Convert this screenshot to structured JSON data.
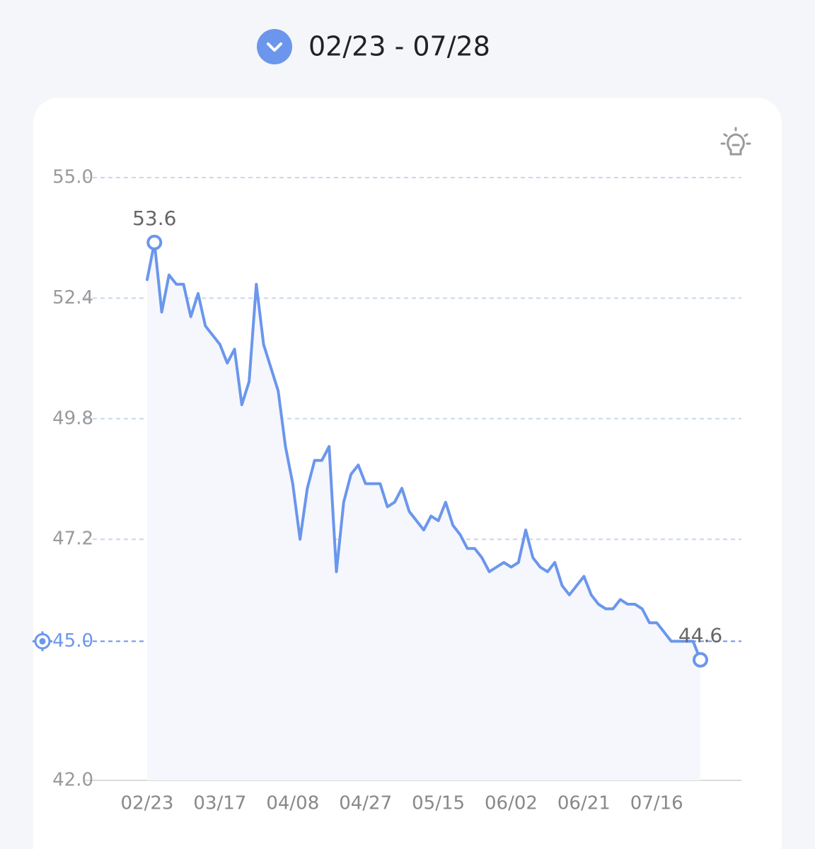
{
  "header": {
    "date_range": "02/23 - 07/28"
  },
  "chart_data": {
    "type": "line",
    "categories": [
      "02/23",
      null,
      null,
      null,
      null,
      null,
      null,
      null,
      null,
      null,
      "03/17",
      null,
      null,
      null,
      null,
      null,
      null,
      null,
      null,
      null,
      "04/08",
      null,
      null,
      null,
      null,
      null,
      null,
      null,
      null,
      null,
      "04/27",
      null,
      null,
      null,
      null,
      null,
      null,
      null,
      null,
      null,
      "05/15",
      null,
      null,
      null,
      null,
      null,
      null,
      null,
      null,
      null,
      "06/02",
      null,
      null,
      null,
      null,
      null,
      null,
      null,
      null,
      null,
      "06/21",
      null,
      null,
      null,
      null,
      null,
      null,
      null,
      null,
      null,
      "07/16",
      null,
      null,
      null,
      null,
      null,
      null
    ],
    "series": [
      {
        "color": "#6b96ec",
        "values": [
          52.8,
          53.6,
          52.1,
          52.9,
          52.7,
          52.7,
          52.0,
          52.5,
          51.8,
          51.6,
          51.4,
          51.0,
          51.3,
          50.1,
          50.6,
          52.7,
          51.4,
          50.9,
          50.4,
          49.2,
          48.4,
          47.2,
          48.3,
          48.9,
          48.9,
          49.2,
          46.5,
          48.0,
          48.6,
          48.8,
          48.4,
          48.4,
          48.4,
          47.9,
          48.0,
          48.3,
          47.8,
          47.6,
          47.4,
          47.7,
          47.6,
          48.0,
          47.5,
          47.3,
          47.0,
          47.0,
          46.8,
          46.5,
          46.6,
          46.7,
          46.6,
          46.7,
          47.4,
          46.8,
          46.6,
          46.5,
          46.7,
          46.2,
          46.0,
          46.2,
          46.4,
          46.0,
          45.8,
          45.7,
          45.7,
          45.9,
          45.8,
          45.8,
          45.7,
          45.4,
          45.4,
          45.2,
          45.0,
          45.0,
          45.0,
          45.0,
          44.6
        ]
      }
    ],
    "ylim": [
      42,
      55
    ],
    "yticks": [
      {
        "value": 55,
        "label": "55.0"
      },
      52.4,
      49.8,
      47.2,
      {
        "value": 42,
        "label": "42.0"
      }
    ],
    "target": {
      "value": 45,
      "label": "45.0"
    },
    "grid": true
  }
}
